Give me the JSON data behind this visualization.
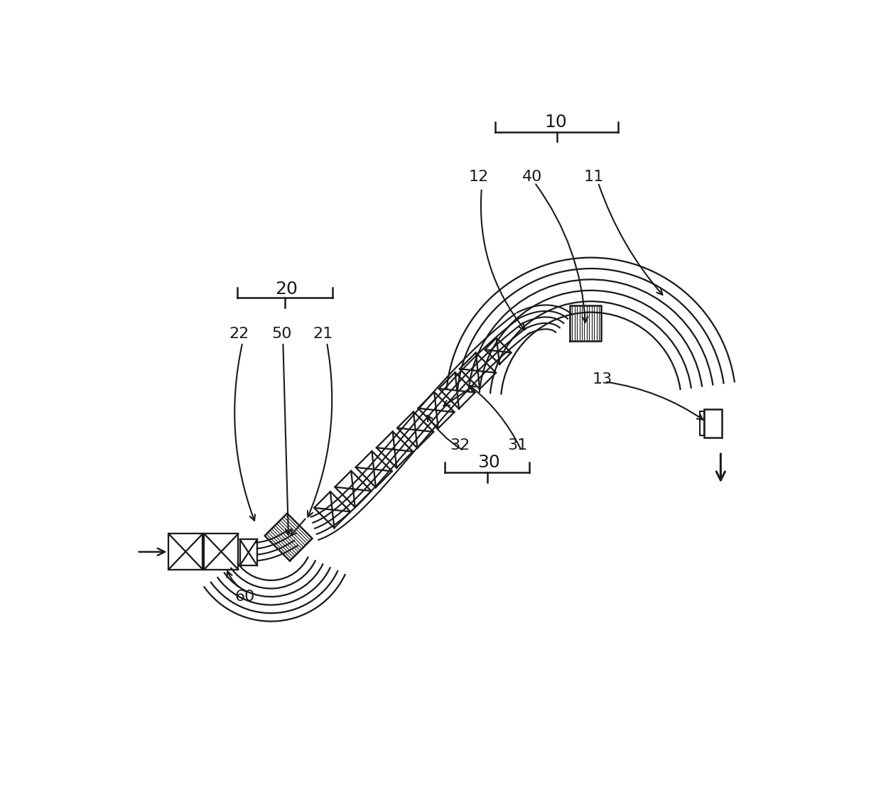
{
  "bg_color": "#ffffff",
  "line_color": "#1a1a1a",
  "line_width": 1.8,
  "font_size": 16,
  "labels": {
    "10": [
      810,
      48,
      18
    ],
    "11": [
      880,
      148,
      16
    ],
    "12": [
      670,
      148,
      16
    ],
    "40": [
      768,
      148,
      16
    ],
    "20": [
      318,
      352,
      18
    ],
    "21": [
      385,
      435,
      16
    ],
    "22": [
      232,
      435,
      16
    ],
    "50": [
      310,
      435,
      16
    ],
    "30": [
      688,
      670,
      18
    ],
    "31": [
      740,
      638,
      16
    ],
    "32": [
      635,
      638,
      16
    ],
    "13": [
      895,
      518,
      16
    ],
    "60": [
      242,
      915,
      16
    ]
  }
}
